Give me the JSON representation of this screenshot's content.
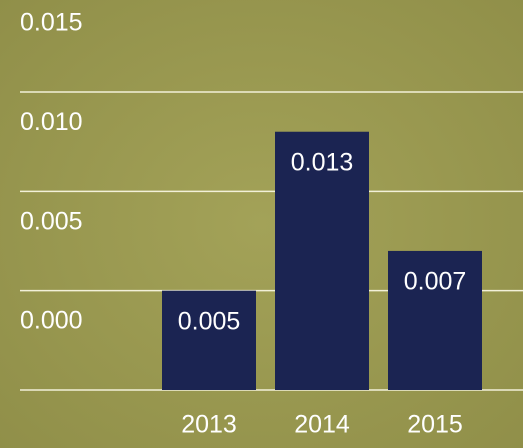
{
  "chart_data": {
    "type": "bar",
    "categories": [
      "2013",
      "2014",
      "2015"
    ],
    "values": [
      0.005,
      0.013,
      0.007
    ],
    "color": "#1b2452",
    "ylim": [
      0,
      0.015
    ],
    "yticks": [
      {
        "value": 0,
        "label": "0.000"
      },
      0.005,
      {
        "value": 0.01,
        "label": "0.010"
      },
      0.015
    ],
    "grid": true
  }
}
